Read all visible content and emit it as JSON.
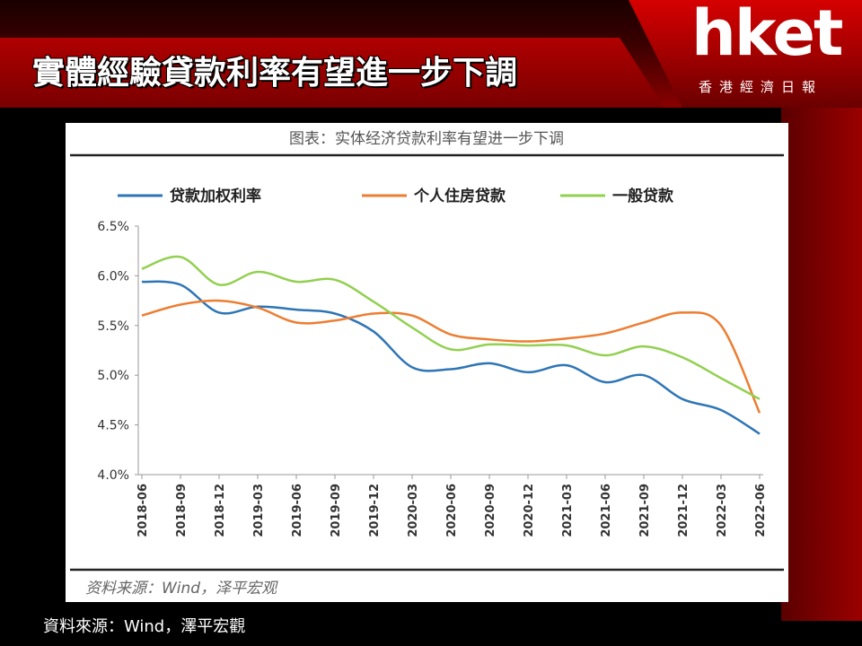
{
  "header": {
    "title": "實體經驗貸款利率有望進一步下調",
    "logo": "hket",
    "logo_sub": "香港經濟日報"
  },
  "footer": {
    "source": "資料來源：Wind，澤平宏觀"
  },
  "chart_data": {
    "type": "line",
    "title": "图表：实体经济贷款利率有望进一步下调",
    "source_note": "资料来源：Wind，泽平宏观",
    "xlabel": "",
    "ylabel": "",
    "ylim": [
      4.0,
      6.5
    ],
    "yticks": [
      "4.0%",
      "4.5%",
      "5.0%",
      "5.5%",
      "6.0%",
      "6.5%"
    ],
    "ytick_values": [
      4.0,
      4.5,
      5.0,
      5.5,
      6.0,
      6.5
    ],
    "legend_position": "top",
    "grid": false,
    "categories": [
      "2018-06",
      "2018-09",
      "2018-12",
      "2019-03",
      "2019-06",
      "2019-09",
      "2019-12",
      "2020-03",
      "2020-06",
      "2020-09",
      "2020-12",
      "2021-03",
      "2021-06",
      "2021-09",
      "2021-12",
      "2022-03",
      "2022-06"
    ],
    "series": [
      {
        "name": "贷款加权利率",
        "color": "#2e75b6",
        "values": [
          5.94,
          5.91,
          5.63,
          5.69,
          5.66,
          5.62,
          5.44,
          5.08,
          5.06,
          5.12,
          5.03,
          5.1,
          4.93,
          5.0,
          4.76,
          4.65,
          4.41
        ]
      },
      {
        "name": "个人住房贷款",
        "color": "#ed7d31",
        "values": [
          5.6,
          5.71,
          5.75,
          5.68,
          5.53,
          5.55,
          5.62,
          5.6,
          5.41,
          5.36,
          5.34,
          5.37,
          5.42,
          5.53,
          5.63,
          5.5,
          4.62
        ]
      },
      {
        "name": "一般贷款",
        "color": "#92d050",
        "values": [
          6.07,
          6.19,
          5.91,
          6.04,
          5.94,
          5.96,
          5.74,
          5.48,
          5.26,
          5.31,
          5.3,
          5.3,
          5.2,
          5.29,
          5.18,
          4.97,
          4.76
        ]
      }
    ]
  }
}
